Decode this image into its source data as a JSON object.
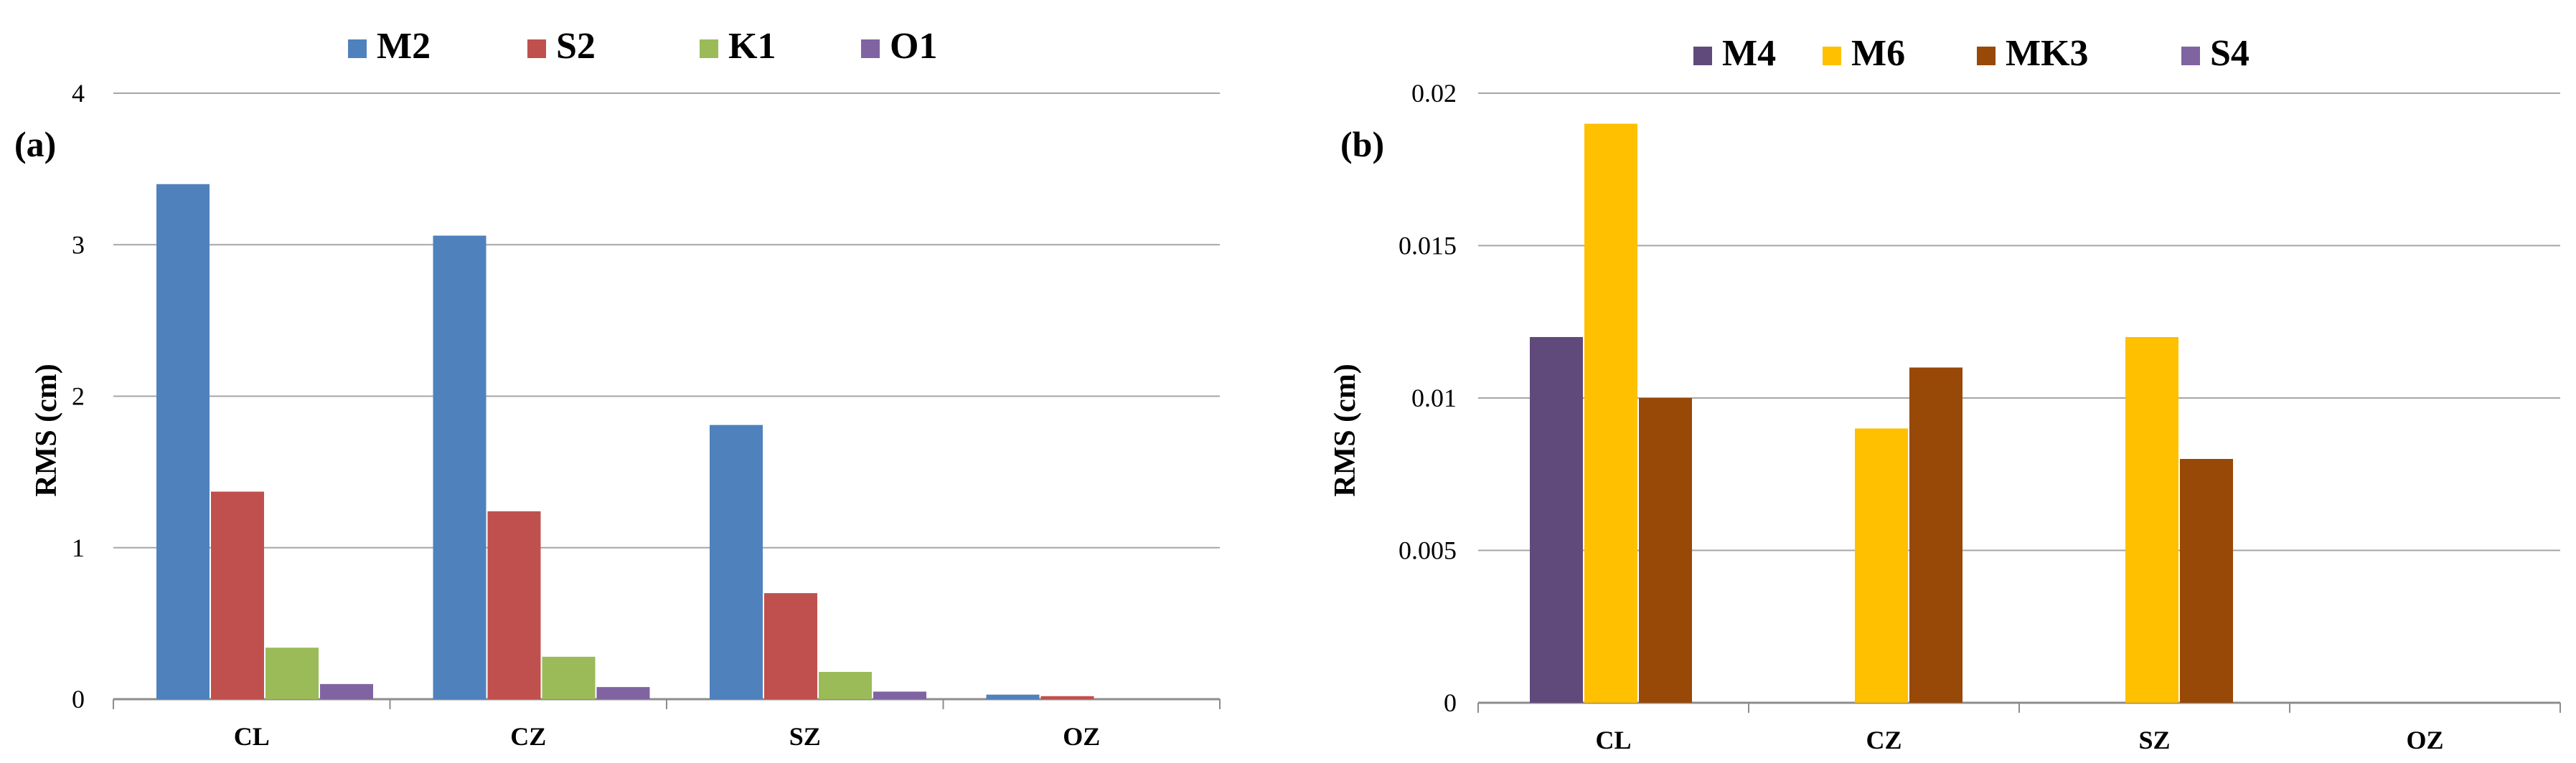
{
  "chart_data": [
    {
      "type": "bar",
      "panel_label": "(a)",
      "categories": [
        "CL",
        "CZ",
        "SZ",
        "OZ"
      ],
      "series": [
        {
          "name": "M2",
          "color": "#4F81BD",
          "values": [
            3.4,
            3.06,
            1.81,
            0.03
          ]
        },
        {
          "name": "S2",
          "color": "#C0504D",
          "values": [
            1.37,
            1.24,
            0.7,
            0.02
          ]
        },
        {
          "name": "K1",
          "color": "#9BBB59",
          "values": [
            0.34,
            0.28,
            0.18,
            0.0
          ]
        },
        {
          "name": "O1",
          "color": "#8064A2",
          "values": [
            0.1,
            0.08,
            0.05,
            0.0
          ]
        }
      ],
      "title": "",
      "xlabel": "",
      "ylabel": "RMS (cm)",
      "ylim": [
        0,
        4
      ],
      "yticks": [
        0,
        1,
        2,
        3,
        4
      ],
      "ytick_labels": [
        "0",
        "1",
        "2",
        "3",
        "4"
      ],
      "grid": true,
      "legend": "top"
    },
    {
      "type": "bar",
      "panel_label": "(b)",
      "categories": [
        "CL",
        "CZ",
        "SZ",
        "OZ"
      ],
      "series": [
        {
          "name": "M4",
          "color": "#604A7B",
          "values": [
            0.012,
            0.0,
            0.0,
            0.0
          ]
        },
        {
          "name": "M6",
          "color": "#FFC000",
          "values": [
            0.019,
            0.009,
            0.012,
            0.0
          ]
        },
        {
          "name": "MK3",
          "color": "#984807",
          "values": [
            0.01,
            0.011,
            0.008,
            0.0
          ]
        },
        {
          "name": "S4",
          "color": "#8064A2",
          "values": [
            0.0,
            0.0,
            0.0,
            0.0
          ]
        }
      ],
      "title": "",
      "xlabel": "",
      "ylabel": "RMS (cm)",
      "ylim": [
        0,
        0.02
      ],
      "yticks": [
        0,
        0.005,
        0.01,
        0.015,
        0.02
      ],
      "ytick_labels": [
        "0",
        "0.005",
        "0.01",
        "0.015",
        "0.02"
      ],
      "grid": true,
      "legend": "top"
    }
  ]
}
